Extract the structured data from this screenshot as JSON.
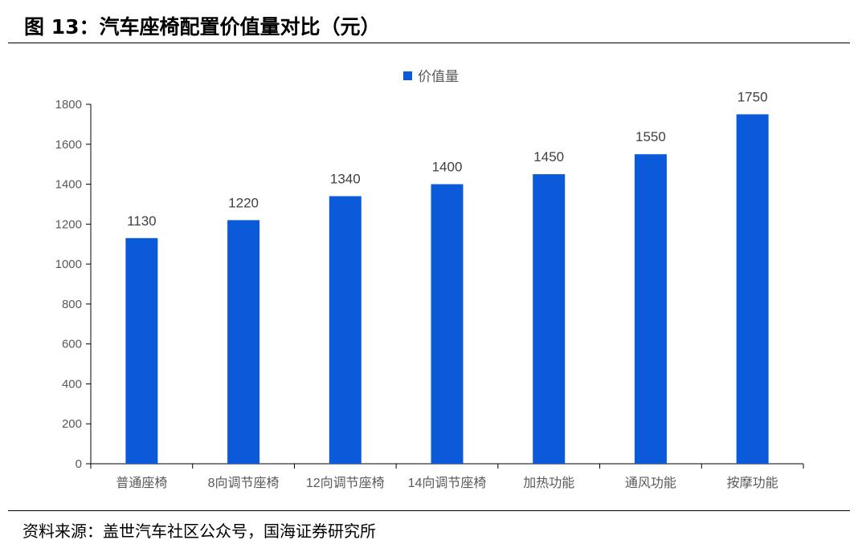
{
  "figure": {
    "title": "图 13：汽车座椅配置价值量对比（元）",
    "source": "资料来源：盖世汽车社区公众号，国海证券研究所"
  },
  "colors": {
    "bar": "#0a5ad9",
    "axis": "#000000",
    "tick_text": "#595959"
  },
  "chart_data": {
    "type": "bar",
    "title": "",
    "xlabel": "",
    "ylabel": "",
    "categories": [
      "普通座椅",
      "8向调节座椅",
      "12向调节座椅",
      "14向调节座椅",
      "加热功能",
      "通风功能",
      "按摩功能"
    ],
    "series": [
      {
        "name": "价值量",
        "values": [
          1130,
          1220,
          1340,
          1400,
          1450,
          1550,
          1750
        ]
      }
    ],
    "ylim": [
      0,
      1800
    ],
    "yticks": [
      0,
      200,
      400,
      600,
      800,
      1000,
      1200,
      1400,
      1600,
      1800
    ],
    "legend": "top-center",
    "grid": false,
    "data_labels": true
  }
}
